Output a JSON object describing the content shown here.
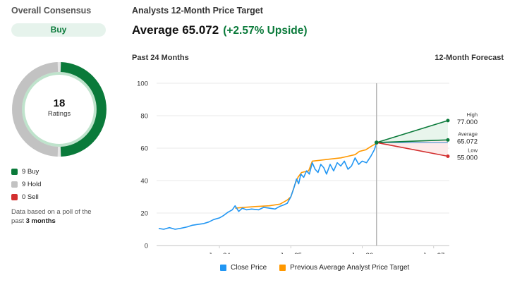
{
  "consensus": {
    "title": "Overall Consensus",
    "rating": "Buy",
    "total_ratings": "18",
    "ratings_label": "Ratings",
    "breakdown": [
      {
        "label": "9 Buy",
        "count": 9,
        "color": "#0a7a3a"
      },
      {
        "label": "9 Hold",
        "count": 9,
        "color": "#c2c2c2"
      },
      {
        "label": "0 Sell",
        "count": 0,
        "color": "#d32f2f"
      }
    ],
    "note_prefix": "Data based on a poll of the past ",
    "note_bold": "3 months"
  },
  "price_target": {
    "title": "Analysts 12-Month Price Target",
    "average_text": "Average 65.072",
    "upside_text": "(+2.57% Upside)",
    "past_label": "Past 24 Months",
    "forecast_label": "12-Month Forecast",
    "legend": [
      {
        "label": "Close Price",
        "color": "#2196f3"
      },
      {
        "label": "Previous Average Analyst Price Target",
        "color": "#ff9800"
      }
    ]
  },
  "chart_data": {
    "type": "line",
    "ylim": [
      0,
      100
    ],
    "y_ticks": [
      0,
      20,
      40,
      60,
      80,
      100
    ],
    "x_tick_labels": [
      {
        "label": "Jan, 24",
        "t": 2024.0
      },
      {
        "label": "Jan, 25",
        "t": 2025.0
      },
      {
        "label": "Jan, 26",
        "t": 2026.0
      },
      {
        "label": "Jan, 27",
        "t": 2027.0
      }
    ],
    "xlim": [
      2023.12,
      2027.22
    ],
    "current_t": 2026.2,
    "grid": true,
    "series": [
      {
        "name": "Close Price",
        "color": "#2196f3",
        "points": [
          [
            2023.15,
            10.5
          ],
          [
            2023.22,
            10.0
          ],
          [
            2023.3,
            11.0
          ],
          [
            2023.38,
            10.0
          ],
          [
            2023.45,
            10.5
          ],
          [
            2023.55,
            11.5
          ],
          [
            2023.62,
            12.5
          ],
          [
            2023.7,
            13.0
          ],
          [
            2023.78,
            13.5
          ],
          [
            2023.85,
            14.5
          ],
          [
            2023.92,
            16.0
          ],
          [
            2024.0,
            17.0
          ],
          [
            2024.06,
            18.5
          ],
          [
            2024.12,
            20.5
          ],
          [
            2024.18,
            22.0
          ],
          [
            2024.22,
            24.5
          ],
          [
            2024.27,
            21.0
          ],
          [
            2024.32,
            23.0
          ],
          [
            2024.38,
            22.0
          ],
          [
            2024.45,
            22.5
          ],
          [
            2024.55,
            22.0
          ],
          [
            2024.62,
            23.5
          ],
          [
            2024.7,
            23.0
          ],
          [
            2024.78,
            22.5
          ],
          [
            2024.84,
            24.0
          ],
          [
            2024.9,
            25.0
          ],
          [
            2024.95,
            26.0
          ],
          [
            2025.0,
            30.0
          ],
          [
            2025.04,
            35.0
          ],
          [
            2025.08,
            41.0
          ],
          [
            2025.11,
            38.0
          ],
          [
            2025.14,
            44.0
          ],
          [
            2025.18,
            42.0
          ],
          [
            2025.22,
            46.0
          ],
          [
            2025.26,
            44.0
          ],
          [
            2025.3,
            51.0
          ],
          [
            2025.34,
            47.0
          ],
          [
            2025.38,
            45.0
          ],
          [
            2025.42,
            50.0
          ],
          [
            2025.46,
            48.0
          ],
          [
            2025.5,
            44.0
          ],
          [
            2025.55,
            50.0
          ],
          [
            2025.6,
            46.0
          ],
          [
            2025.65,
            51.0
          ],
          [
            2025.7,
            49.0
          ],
          [
            2025.75,
            52.0
          ],
          [
            2025.8,
            47.0
          ],
          [
            2025.85,
            49.0
          ],
          [
            2025.9,
            54.0
          ],
          [
            2025.95,
            50.0
          ],
          [
            2026.0,
            52.0
          ],
          [
            2026.06,
            51.0
          ],
          [
            2026.12,
            55.0
          ],
          [
            2026.17,
            59.0
          ],
          [
            2026.2,
            63.0
          ]
        ]
      },
      {
        "name": "Previous Average Analyst Price Target",
        "color": "#ff9800",
        "points": [
          [
            2024.22,
            23.0
          ],
          [
            2024.35,
            23.5
          ],
          [
            2024.5,
            24.0
          ],
          [
            2024.7,
            24.5
          ],
          [
            2024.85,
            25.5
          ],
          [
            2024.95,
            28.0
          ],
          [
            2025.0,
            30.0
          ],
          [
            2025.06,
            38.0
          ],
          [
            2025.1,
            42.0
          ],
          [
            2025.15,
            45.0
          ],
          [
            2025.25,
            46.0
          ],
          [
            2025.3,
            52.0
          ],
          [
            2025.4,
            52.5
          ],
          [
            2025.5,
            53.0
          ],
          [
            2025.6,
            53.5
          ],
          [
            2025.7,
            54.0
          ],
          [
            2025.8,
            55.0
          ],
          [
            2025.9,
            56.0
          ],
          [
            2025.96,
            58.0
          ],
          [
            2026.05,
            59.0
          ],
          [
            2026.12,
            61.0
          ],
          [
            2026.2,
            63.0
          ]
        ]
      }
    ],
    "forecast": {
      "start": [
        2026.2,
        63.44
      ],
      "end_t": 2027.2,
      "high": {
        "label": "High",
        "value_text": "77.000",
        "value": 77.0,
        "color": "#0a7a3a"
      },
      "average": {
        "label": "Average",
        "value_text": "65.072",
        "value": 65.072,
        "color": "#0a7a3a"
      },
      "low": {
        "label": "Low",
        "value_text": "55.000",
        "value": 55.0,
        "color": "#d32f2f"
      },
      "reference_color": "#5a9bd5"
    }
  }
}
